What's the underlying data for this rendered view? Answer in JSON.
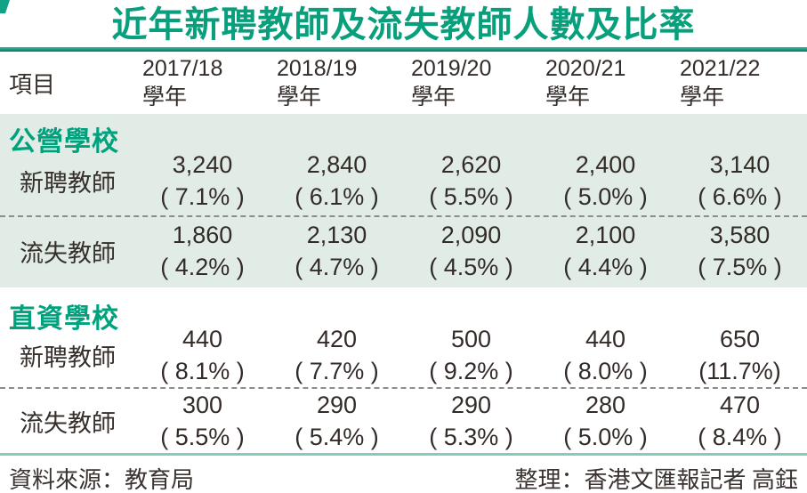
{
  "title": "近年新聘教師及流失教師人數及比率",
  "header": {
    "item_label": "項目",
    "year_label": "學年",
    "years": [
      "2017/18",
      "2018/19",
      "2019/20",
      "2020/21",
      "2021/22"
    ]
  },
  "table": {
    "sections": [
      {
        "name": "公營學校",
        "rows": [
          {
            "label": "新聘教師",
            "values": [
              "3,240",
              "2,840",
              "2,620",
              "2,400",
              "3,140"
            ],
            "rates": [
              "( 7.1% )",
              "( 6.1% )",
              "( 5.5% )",
              "( 5.0% )",
              "( 6.6% )"
            ]
          },
          {
            "label": "流失教師",
            "values": [
              "1,860",
              "2,130",
              "2,090",
              "2,100",
              "3,580"
            ],
            "rates": [
              "( 4.2% )",
              "( 4.7% )",
              "( 4.5% )",
              "( 4.4% )",
              "( 7.5% )"
            ]
          }
        ]
      },
      {
        "name": "直資學校",
        "rows": [
          {
            "label": "新聘教師",
            "values": [
              "440",
              "420",
              "500",
              "440",
              "650"
            ],
            "rates": [
              "( 8.1% )",
              "( 7.7% )",
              "( 9.2% )",
              "( 8.0% )",
              "(11.7%)"
            ]
          },
          {
            "label": "流失教師",
            "values": [
              "300",
              "290",
              "290",
              "280",
              "470"
            ],
            "rates": [
              "( 5.5% )",
              "( 5.4% )",
              "( 5.3% )",
              "( 5.0% )",
              "( 8.4% )"
            ]
          }
        ]
      }
    ]
  },
  "footer": {
    "source": "資料來源：教育局",
    "credit": "整理：香港文匯報記者  高鈺"
  },
  "colors": {
    "accent_teal": "#089f7c",
    "section_green": "#00a27e",
    "band_bg": "#e1ece6",
    "rule_top": "#149a81",
    "rule_bottom": "#84ccb9",
    "text": "#332b28"
  },
  "chart_data": {
    "type": "table",
    "title": "近年新聘教師及流失教師人數及比率",
    "columns": [
      "2017/18 學年",
      "2018/19 學年",
      "2019/20 學年",
      "2020/21 學年",
      "2021/22 學年"
    ],
    "sections": [
      {
        "name": "公營學校",
        "rows": [
          {
            "label": "新聘教師",
            "counts": [
              3240,
              2840,
              2620,
              2400,
              3140
            ],
            "rates_pct": [
              7.1,
              6.1,
              5.5,
              5.0,
              6.6
            ]
          },
          {
            "label": "流失教師",
            "counts": [
              1860,
              2130,
              2090,
              2100,
              3580
            ],
            "rates_pct": [
              4.2,
              4.7,
              4.5,
              4.4,
              7.5
            ]
          }
        ]
      },
      {
        "name": "直資學校",
        "rows": [
          {
            "label": "新聘教師",
            "counts": [
              440,
              420,
              500,
              440,
              650
            ],
            "rates_pct": [
              8.1,
              7.7,
              9.2,
              8.0,
              11.7
            ]
          },
          {
            "label": "流失教師",
            "counts": [
              300,
              290,
              290,
              280,
              470
            ],
            "rates_pct": [
              5.5,
              5.4,
              5.3,
              5.0,
              8.4
            ]
          }
        ]
      }
    ],
    "source": "教育局",
    "credit": "香港文匯報記者 高鈺"
  }
}
